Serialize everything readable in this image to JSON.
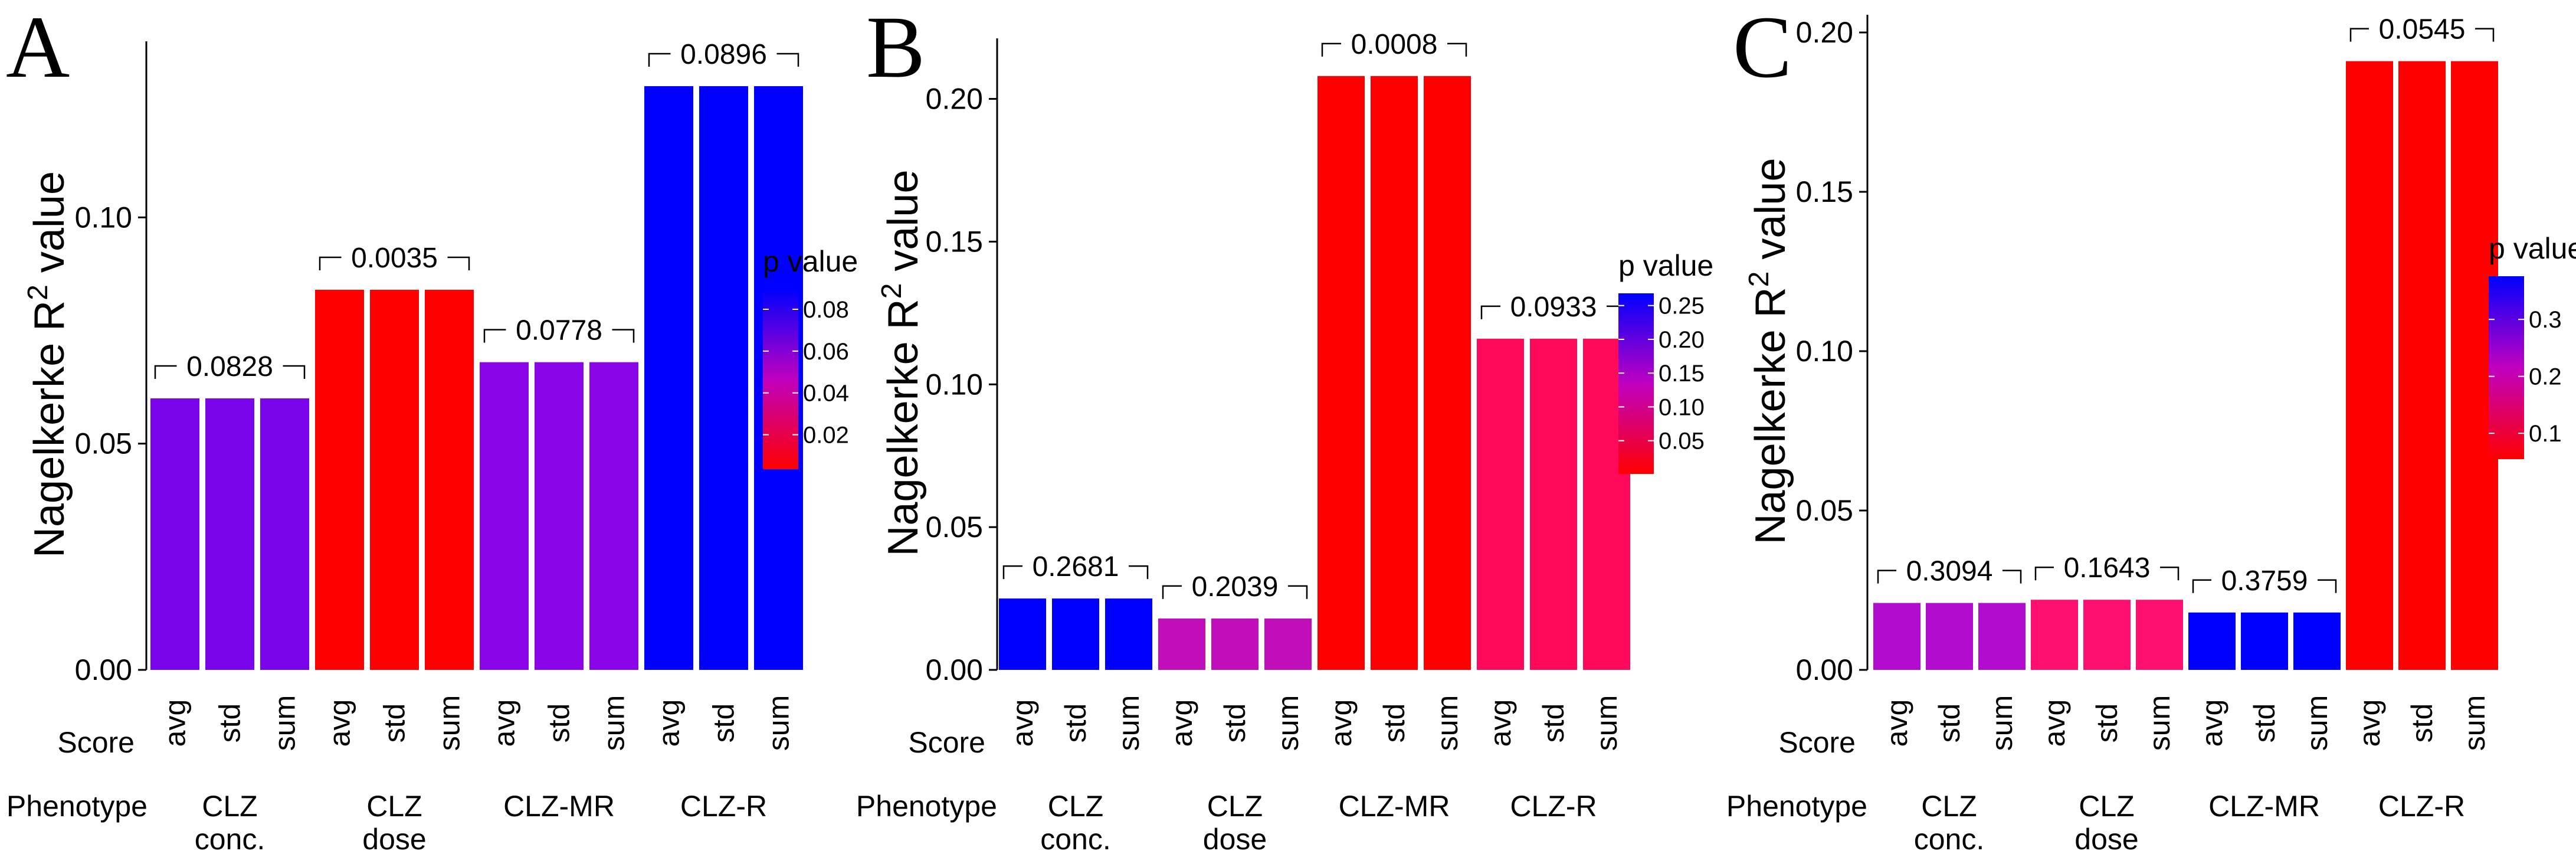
{
  "chart_data": [
    {
      "type": "bar",
      "panel": "A",
      "ylabel": "Nagelkerke R",
      "ylabel_sup": "2",
      "ylabel_suffix": " value",
      "ylim": [
        0,
        0.135
      ],
      "yticks": [
        0.0,
        0.05,
        0.1
      ],
      "ytick_labels": [
        "0.00",
        "0.05",
        "0.10"
      ],
      "score_row_label": "Score",
      "phenotype_row_label": "Phenotype",
      "groups": [
        {
          "name_lines": [
            "CLZ",
            "conc."
          ],
          "p_label": "0.0828",
          "p": 0.0828,
          "scores": [
            "avg",
            "std",
            "sum"
          ],
          "values": [
            0.06,
            0.06,
            0.06
          ],
          "color": "#7a04ea"
        },
        {
          "name_lines": [
            "CLZ",
            "dose"
          ],
          "p_label": "0.0035",
          "p": 0.0035,
          "scores": [
            "avg",
            "std",
            "sum"
          ],
          "values": [
            0.084,
            0.084,
            0.084
          ],
          "color": "#ff0000"
        },
        {
          "name_lines": [
            "CLZ-MR"
          ],
          "p_label": "0.0778",
          "p": 0.0778,
          "scores": [
            "avg",
            "std",
            "sum"
          ],
          "values": [
            0.068,
            0.068,
            0.068
          ],
          "color": "#8a05e8"
        },
        {
          "name_lines": [
            "CLZ-R"
          ],
          "p_label": "0.0896",
          "p": 0.0896,
          "scores": [
            "avg",
            "std",
            "sum"
          ],
          "values": [
            0.129,
            0.129,
            0.129
          ],
          "color": "#0000ff"
        }
      ],
      "legend": {
        "title": "p value",
        "ticks": [
          0.02,
          0.04,
          0.06,
          0.08
        ],
        "tick_labels": [
          "0.02",
          "0.04",
          "0.06",
          "0.08"
        ],
        "min": 0.0035,
        "max": 0.0896,
        "low_color": "#ff0000",
        "high_color": "#0000ff"
      }
    },
    {
      "type": "bar",
      "panel": "B",
      "ylabel": "Nagelkerke R",
      "ylabel_sup": "2",
      "ylabel_suffix": " value",
      "ylim": [
        0,
        0.215
      ],
      "yticks": [
        0.0,
        0.05,
        0.1,
        0.15,
        0.2
      ],
      "ytick_labels": [
        "0.00",
        "0.05",
        "0.10",
        "0.15",
        "0.20"
      ],
      "score_row_label": "Score",
      "phenotype_row_label": "Phenotype",
      "groups": [
        {
          "name_lines": [
            "CLZ",
            "conc."
          ],
          "p_label": "0.2681",
          "p": 0.2681,
          "scores": [
            "avg",
            "std",
            "sum"
          ],
          "values": [
            0.025,
            0.025,
            0.025
          ],
          "color": "#0000ff"
        },
        {
          "name_lines": [
            "CLZ",
            "dose"
          ],
          "p_label": "0.2039",
          "p": 0.2039,
          "scores": [
            "avg",
            "std",
            "sum"
          ],
          "values": [
            0.018,
            0.018,
            0.018
          ],
          "color": "#c00eba"
        },
        {
          "name_lines": [
            "CLZ-MR"
          ],
          "p_label": "0.0008",
          "p": 0.0008,
          "scores": [
            "avg",
            "std",
            "sum"
          ],
          "values": [
            0.208,
            0.208,
            0.208
          ],
          "color": "#ff0000"
        },
        {
          "name_lines": [
            "CLZ-R"
          ],
          "p_label": "0.0933",
          "p": 0.0933,
          "scores": [
            "avg",
            "std",
            "sum"
          ],
          "values": [
            0.116,
            0.116,
            0.116
          ],
          "color": "#ff0a5a"
        }
      ],
      "legend": {
        "title": "p value",
        "ticks": [
          0.05,
          0.1,
          0.15,
          0.2,
          0.25
        ],
        "tick_labels": [
          "0.05",
          "0.10",
          "0.15",
          "0.20",
          "0.25"
        ],
        "min": 0.0008,
        "max": 0.2681,
        "low_color": "#ff0000",
        "high_color": "#0000ff"
      }
    },
    {
      "type": "bar",
      "panel": "C",
      "ylabel": "Nagelkerke R",
      "ylabel_sup": "2",
      "ylabel_suffix": " value",
      "ylim": [
        0,
        0.2
      ],
      "yticks": [
        0.0,
        0.05,
        0.1,
        0.15,
        0.2
      ],
      "ytick_labels": [
        "0.00",
        "0.05",
        "0.10",
        "0.15",
        "0.20"
      ],
      "score_row_label": "Score",
      "phenotype_row_label": "Phenotype",
      "groups": [
        {
          "name_lines": [
            "CLZ",
            "conc."
          ],
          "p_label": "0.3094",
          "p": 0.3094,
          "scores": [
            "avg",
            "std",
            "sum"
          ],
          "values": [
            0.021,
            0.021,
            0.021
          ],
          "color": "#b20dce"
        },
        {
          "name_lines": [
            "CLZ",
            "dose"
          ],
          "p_label": "0.1643",
          "p": 0.1643,
          "scores": [
            "avg",
            "std",
            "sum"
          ],
          "values": [
            0.022,
            0.022,
            0.022
          ],
          "color": "#ff1070"
        },
        {
          "name_lines": [
            "CLZ-MR"
          ],
          "p_label": "0.3759",
          "p": 0.3759,
          "scores": [
            "avg",
            "std",
            "sum"
          ],
          "values": [
            0.018,
            0.018,
            0.018
          ],
          "color": "#0000ff"
        },
        {
          "name_lines": [
            "CLZ-R"
          ],
          "p_label": "0.0545",
          "p": 0.0545,
          "scores": [
            "avg",
            "std",
            "sum"
          ],
          "values": [
            0.191,
            0.191,
            0.191
          ],
          "color": "#ff0000"
        }
      ],
      "legend": {
        "title": "p value",
        "ticks": [
          0.1,
          0.2,
          0.3
        ],
        "tick_labels": [
          "0.1",
          "0.2",
          "0.3"
        ],
        "min": 0.0545,
        "max": 0.3759,
        "low_color": "#ff0000",
        "high_color": "#0000ff"
      }
    }
  ]
}
